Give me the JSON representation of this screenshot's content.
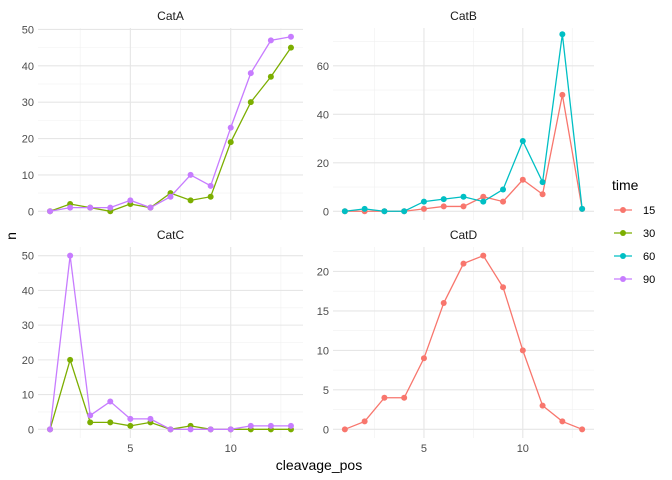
{
  "chart_data": {
    "type": "line",
    "xlabel": "cleavage_pos",
    "ylabel": "n",
    "legend": {
      "title": "time",
      "placement": "right",
      "entries": [
        {
          "label": "15",
          "color": "#F8766D"
        },
        {
          "label": "30",
          "color": "#7CAE00"
        },
        {
          "label": "60",
          "color": "#00BFC4"
        },
        {
          "label": "90",
          "color": "#C77CFF"
        }
      ]
    },
    "grid": true,
    "xlim": [
      0.4,
      13.6
    ],
    "x_ticks": [
      5,
      10
    ],
    "panels": [
      {
        "title": "CatA",
        "ylim": [
          -2.4,
          50.4
        ],
        "y_ticks": [
          0,
          10,
          20,
          30,
          40,
          50
        ],
        "series": [
          {
            "name": "30",
            "x": [
              1,
              2,
              3,
              4,
              5,
              6,
              7,
              8,
              9,
              10,
              11,
              12,
              13
            ],
            "values": [
              0,
              2,
              1,
              0,
              2,
              1,
              5,
              3,
              4,
              19,
              30,
              37,
              45
            ]
          },
          {
            "name": "90",
            "x": [
              1,
              2,
              3,
              4,
              5,
              6,
              7,
              8,
              9,
              10,
              11,
              12,
              13
            ],
            "values": [
              0,
              1,
              1,
              1,
              3,
              1,
              4,
              10,
              7,
              23,
              38,
              47,
              48
            ]
          }
        ]
      },
      {
        "title": "CatB",
        "ylim": [
          -3.6,
          75.6
        ],
        "y_ticks": [
          0,
          20,
          40,
          60
        ],
        "series": [
          {
            "name": "15",
            "x": [
              1,
              2,
              3,
              4,
              5,
              6,
              7,
              8,
              9,
              10,
              11,
              12,
              13
            ],
            "values": [
              0,
              0,
              0,
              0,
              1,
              2,
              2,
              6,
              4,
              13,
              7,
              48,
              1
            ]
          },
          {
            "name": "60",
            "x": [
              1,
              2,
              3,
              4,
              5,
              6,
              7,
              8,
              9,
              10,
              11,
              12,
              13
            ],
            "values": [
              0,
              1,
              0,
              0,
              4,
              5,
              6,
              4,
              9,
              29,
              12,
              73,
              1
            ]
          }
        ]
      },
      {
        "title": "CatC",
        "ylim": [
          -2.5,
          52.5
        ],
        "y_ticks": [
          0,
          10,
          20,
          30,
          40,
          50
        ],
        "series": [
          {
            "name": "30",
            "x": [
              1,
              2,
              3,
              4,
              5,
              6,
              7,
              8,
              9,
              10,
              11,
              12,
              13
            ],
            "values": [
              0,
              20,
              2,
              2,
              1,
              2,
              0,
              1,
              0,
              0,
              0,
              0,
              0
            ]
          },
          {
            "name": "90",
            "x": [
              1,
              2,
              3,
              4,
              5,
              6,
              7,
              8,
              9,
              10,
              11,
              12,
              13
            ],
            "values": [
              0,
              50,
              4,
              8,
              3,
              3,
              0,
              0,
              0,
              0,
              1,
              1,
              1
            ]
          }
        ]
      },
      {
        "title": "CatD",
        "ylim": [
          -1.1,
          23.1
        ],
        "y_ticks": [
          0,
          5,
          10,
          15,
          20
        ],
        "series": [
          {
            "name": "15",
            "x": [
              1,
              2,
              3,
              4,
              5,
              6,
              7,
              8,
              9,
              10,
              11,
              12,
              13
            ],
            "values": [
              0,
              1,
              4,
              4,
              9,
              16,
              21,
              22,
              18,
              10,
              3,
              1,
              0
            ]
          }
        ]
      }
    ]
  }
}
